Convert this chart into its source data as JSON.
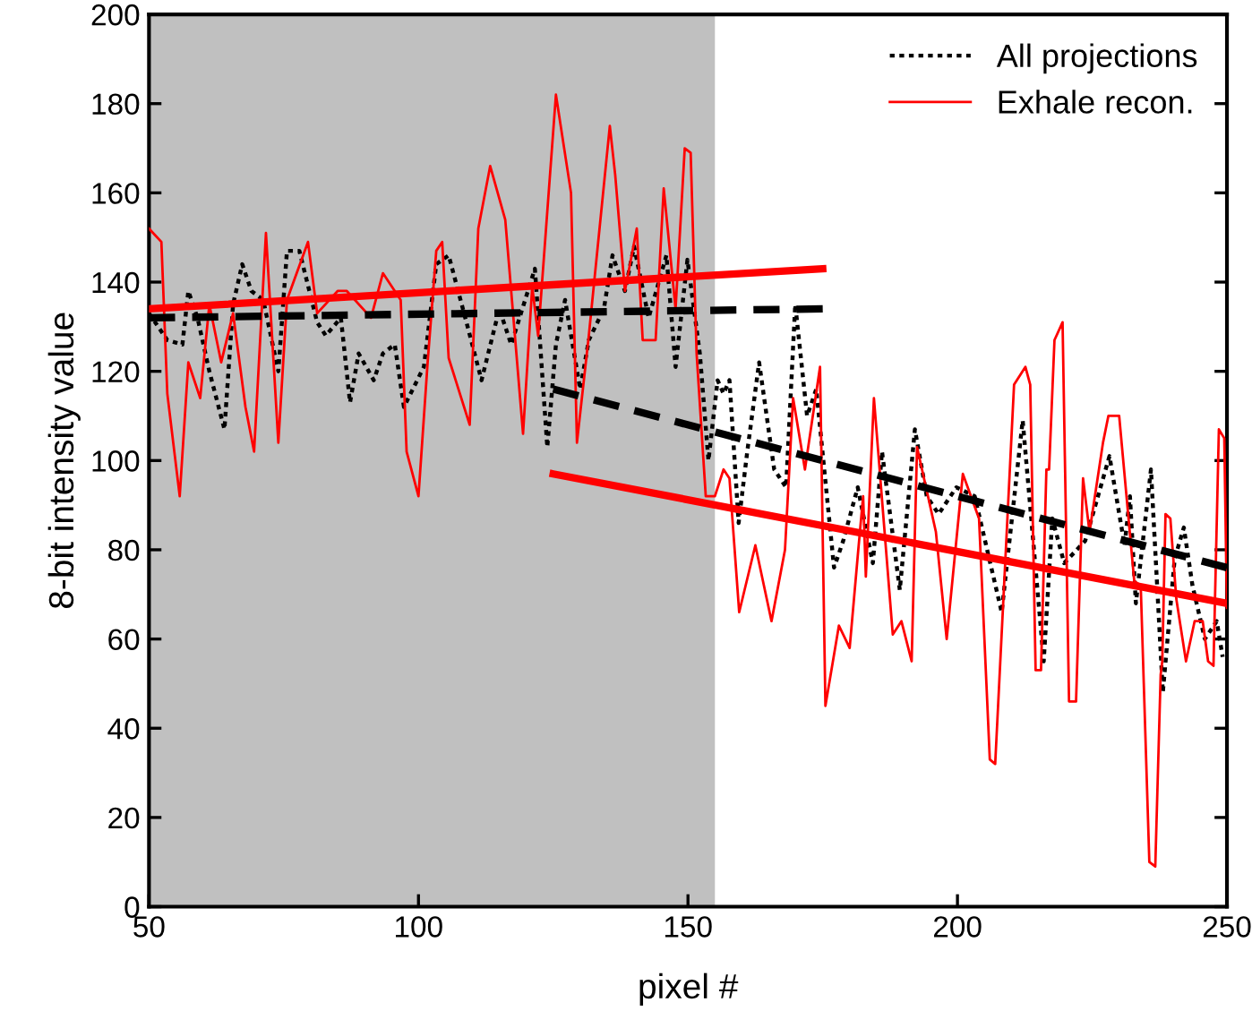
{
  "chart_data": {
    "type": "line",
    "xlabel": "pixel #",
    "ylabel": "8-bit intensity value",
    "xlim": [
      50,
      250
    ],
    "ylim": [
      0,
      200
    ],
    "xticks": [
      50,
      100,
      150,
      200,
      250
    ],
    "yticks": [
      0,
      20,
      40,
      60,
      80,
      100,
      120,
      140,
      160,
      180,
      200
    ],
    "grid": false,
    "legend": "top right",
    "marker": "none",
    "bands": [
      {
        "axis": "x",
        "from": 50,
        "to": 155,
        "color": "#c0c0c0"
      }
    ],
    "series": [
      {
        "name": "All projections",
        "color": "#000000",
        "line_style": "dotted",
        "x": [
          50,
          53.4,
          56.2,
          57.3,
          59,
          61.2,
          64,
          65.6,
          67.3,
          69,
          71.2,
          74,
          75.6,
          77.9,
          81.2,
          82.8,
          85.6,
          87.3,
          88.9,
          91.7,
          93.4,
          95.6,
          97.3,
          101,
          103.3,
          105.6,
          108.9,
          111.7,
          115,
          117.2,
          121.6,
          123.9,
          125.5,
          127.2,
          130,
          131.6,
          134.4,
          136,
          138.3,
          140,
          142.7,
          146,
          147.7,
          149.9,
          152.2,
          153.8,
          155.5,
          156.6,
          157.7,
          159.4,
          161,
          163.2,
          166,
          168.2,
          169.9,
          172.1,
          173.8,
          177.1,
          178.8,
          181.5,
          184.3,
          186,
          187.6,
          189.3,
          192.1,
          194.3,
          196.5,
          199.8,
          203.2,
          208.2,
          212.1,
          216,
          217.6,
          219.8,
          223.7,
          228.2,
          231,
          232,
          233.1,
          235.9,
          238.1,
          240.3,
          242,
          243.6,
          245.9,
          248.1,
          249.2
        ],
        "values": [
          133,
          127,
          126,
          138,
          132,
          120,
          107,
          135,
          144,
          138,
          136,
          120,
          147,
          147,
          131,
          128,
          132,
          113,
          124,
          118,
          124,
          126,
          112,
          121,
          144,
          146,
          131,
          118,
          134,
          126,
          143,
          103,
          126,
          136,
          116,
          127,
          134,
          146,
          138,
          148,
          132,
          146,
          121,
          145,
          124,
          100,
          118,
          115,
          118,
          86,
          102,
          122,
          98,
          94,
          135,
          110,
          116,
          76,
          82,
          94,
          77,
          102,
          87,
          71,
          107,
          92,
          88,
          94,
          92,
          66,
          109,
          55,
          87,
          77,
          82,
          101,
          81,
          92,
          68,
          98,
          48,
          78,
          85,
          72,
          60,
          64,
          56
        ]
      },
      {
        "name": "Exhale recon.",
        "color": "#ff0000",
        "line_style": "solid",
        "x": [
          50,
          52.3,
          53.4,
          55.7,
          57.3,
          59.5,
          61.2,
          63.4,
          65.6,
          67.9,
          69.5,
          71.7,
          74,
          75.6,
          79.5,
          81.2,
          85,
          86.7,
          91.2,
          93.4,
          96.7,
          97.8,
          100,
          101.7,
          103.3,
          104.4,
          105.6,
          109.5,
          111.1,
          113.3,
          116.1,
          119.4,
          121.1,
          122.2,
          125.5,
          128.3,
          129.4,
          131.6,
          135.5,
          136.5,
          138.3,
          140.5,
          141.6,
          144,
          145.5,
          147.7,
          149.4,
          150.5,
          151.6,
          153.3,
          155,
          156.6,
          157.7,
          159.5,
          162.5,
          165.5,
          168,
          169.5,
          171.7,
          174.5,
          175.5,
          178,
          180,
          181.6,
          182.5,
          183,
          184.5,
          188,
          189.6,
          191.5,
          192.5,
          196,
          198,
          201,
          204,
          206,
          207,
          210.5,
          212.6,
          213.5,
          214.5,
          215.5,
          216.5,
          217,
          218,
          219.5,
          220.7,
          222,
          223.3,
          224.5,
          227,
          228,
          230,
          232.8,
          234,
          235.6,
          236.7,
          237.7,
          238,
          238.6,
          239.5,
          240.6,
          242.4,
          244,
          245.5,
          246.5,
          247.5,
          248.5,
          249.5,
          250
        ],
        "values": [
          152,
          149,
          115,
          92,
          122,
          114,
          135,
          122,
          133,
          112,
          102,
          151,
          104,
          136,
          149,
          133,
          138,
          138,
          132,
          142,
          136,
          102,
          92,
          122,
          147,
          149,
          123,
          108,
          152,
          166,
          154,
          106,
          139,
          128,
          182,
          160,
          104,
          128,
          175,
          164,
          138,
          152,
          127,
          127,
          161,
          134,
          170,
          169,
          124,
          92,
          92,
          98,
          96,
          66,
          81,
          64,
          80,
          114,
          98,
          121,
          45,
          63,
          58,
          80,
          92,
          74,
          114,
          61,
          64,
          55,
          103,
          84,
          60,
          97,
          87,
          33,
          32,
          117,
          121,
          117,
          53,
          53,
          98,
          98,
          127,
          131,
          46,
          46,
          96,
          84,
          104,
          110,
          110,
          73,
          72,
          10,
          9,
          52,
          55,
          88,
          87,
          69,
          55,
          64,
          64,
          55,
          54,
          107,
          105,
          67
        ]
      },
      {
        "type": "line",
        "color": "#000000",
        "line_style": "dashed",
        "x": [
          50,
          175
        ],
        "values": [
          132,
          134
        ]
      },
      {
        "type": "line",
        "color": "#000000",
        "line_style": "dashed",
        "x": [
          125,
          250
        ],
        "values": [
          116,
          76
        ]
      },
      {
        "type": "line",
        "color": "#ff0000",
        "line_style": "solid",
        "x": [
          50,
          175
        ],
        "values": [
          134,
          143
        ]
      },
      {
        "type": "line",
        "color": "#ff0000",
        "line_style": "solid",
        "x": [
          125,
          250
        ],
        "values": [
          97,
          68
        ]
      }
    ]
  }
}
